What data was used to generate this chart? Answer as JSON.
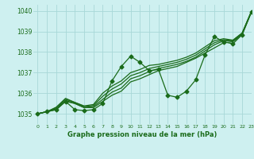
{
  "title": "Graphe pression niveau de la mer (hPa)",
  "bg_color": "#cef0f0",
  "line_color": "#1a6b1a",
  "grid_color": "#a8d8d8",
  "xlim": [
    -0.5,
    23
  ],
  "ylim": [
    1034.5,
    1040.3
  ],
  "yticks": [
    1035,
    1036,
    1037,
    1038,
    1039,
    1040
  ],
  "xticks": [
    0,
    1,
    2,
    3,
    4,
    5,
    6,
    7,
    8,
    9,
    10,
    11,
    12,
    13,
    14,
    15,
    16,
    17,
    18,
    19,
    20,
    21,
    22,
    23
  ],
  "wiggly": [
    1035.0,
    1035.1,
    1035.2,
    1035.6,
    1035.2,
    1035.15,
    1035.2,
    1035.5,
    1036.6,
    1037.3,
    1037.8,
    1037.5,
    1037.1,
    1037.15,
    1035.9,
    1035.8,
    1036.1,
    1036.65,
    1037.85,
    1038.75,
    1038.5,
    1038.4,
    1038.85,
    1039.95
  ],
  "smooth1": [
    1035.0,
    1035.1,
    1035.2,
    1035.6,
    1035.5,
    1035.3,
    1035.3,
    1035.6,
    1035.9,
    1036.1,
    1036.55,
    1036.7,
    1036.9,
    1037.1,
    1037.2,
    1037.3,
    1037.5,
    1037.7,
    1037.95,
    1038.2,
    1038.45,
    1038.5,
    1038.85,
    1039.95
  ],
  "smooth2": [
    1035.0,
    1035.1,
    1035.25,
    1035.65,
    1035.5,
    1035.3,
    1035.35,
    1035.7,
    1036.05,
    1036.25,
    1036.7,
    1036.85,
    1037.05,
    1037.2,
    1037.3,
    1037.4,
    1037.55,
    1037.75,
    1038.05,
    1038.35,
    1038.55,
    1038.55,
    1038.9,
    1039.97
  ],
  "smooth3": [
    1035.0,
    1035.1,
    1035.3,
    1035.7,
    1035.55,
    1035.35,
    1035.4,
    1035.85,
    1036.2,
    1036.45,
    1036.85,
    1037.0,
    1037.2,
    1037.3,
    1037.4,
    1037.5,
    1037.65,
    1037.85,
    1038.15,
    1038.45,
    1038.6,
    1038.55,
    1038.92,
    1039.98
  ],
  "smooth4": [
    1035.0,
    1035.1,
    1035.32,
    1035.75,
    1035.55,
    1035.38,
    1035.45,
    1036.0,
    1036.35,
    1036.6,
    1037.0,
    1037.15,
    1037.35,
    1037.4,
    1037.5,
    1037.6,
    1037.75,
    1037.95,
    1038.25,
    1038.55,
    1038.65,
    1038.58,
    1038.93,
    1039.99
  ],
  "lw": 0.9,
  "marker": "D",
  "marker_size": 2.5
}
